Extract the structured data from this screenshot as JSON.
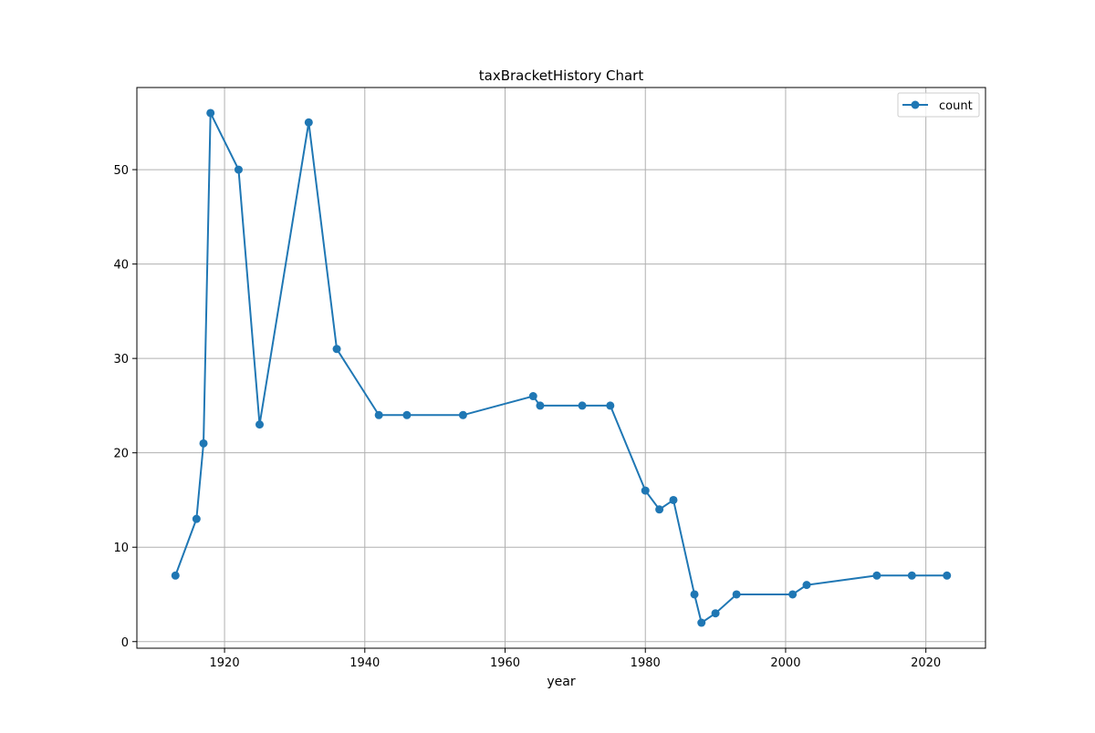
{
  "chart_data": {
    "type": "line",
    "title": "taxBracketHistory Chart",
    "xlabel": "year",
    "ylabel": "",
    "xlim": [
      1907.5,
      2028.5
    ],
    "ylim": [
      -0.7,
      58.7
    ],
    "xticks": [
      1920,
      1940,
      1960,
      1980,
      2000,
      2020
    ],
    "yticks": [
      0,
      10,
      20,
      30,
      40,
      50
    ],
    "grid": true,
    "legend_position": "top-right",
    "series": [
      {
        "name": "count",
        "color": "#1f77b4",
        "marker": "circle",
        "x": [
          1913,
          1916,
          1917,
          1918,
          1922,
          1925,
          1932,
          1936,
          1942,
          1946,
          1954,
          1964,
          1965,
          1971,
          1975,
          1980,
          1982,
          1984,
          1987,
          1988,
          1990,
          1993,
          2001,
          2003,
          2013,
          2018,
          2023
        ],
        "y": [
          7,
          13,
          21,
          56,
          50,
          23,
          55,
          31,
          24,
          24,
          24,
          26,
          25,
          25,
          25,
          16,
          14,
          15,
          5,
          2,
          3,
          5,
          5,
          6,
          7,
          7,
          7
        ]
      }
    ]
  }
}
